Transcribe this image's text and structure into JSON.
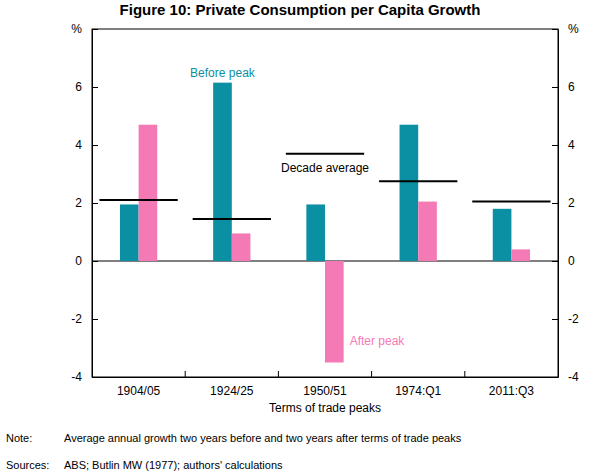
{
  "chart_data": {
    "type": "bar",
    "title": "Figure 10: Private Consumption per Capita Growth",
    "x_label": "Terms of trade peaks",
    "categories": [
      "1904/05",
      "1924/25",
      "1950/51",
      "1974:Q1",
      "2011:Q3"
    ],
    "series": [
      {
        "name": "Before peak",
        "color": "#0a8fa3",
        "values": [
          1.95,
          6.15,
          1.95,
          4.7,
          1.8
        ]
      },
      {
        "name": "After peak",
        "color": "#f47ab5",
        "values": [
          4.7,
          0.95,
          -3.5,
          2.05,
          0.4
        ]
      },
      {
        "name": "Decade average",
        "type": "line",
        "line_style": "solid",
        "color": "#000000",
        "values": [
          2.1,
          1.45,
          3.7,
          2.75,
          2.05
        ]
      }
    ],
    "ylim": [
      -4,
      8
    ],
    "yticks": [
      -4,
      -2,
      0,
      2,
      4,
      6,
      {
        "value": 8,
        "label": "%"
      }
    ],
    "grid": false,
    "note_label": "Note:",
    "note": "Average annual growth two years before and two years after terms of trade peaks",
    "sources_label": "Sources:",
    "sources": "ABS; Butlin MW (1977); authors' calculations"
  }
}
